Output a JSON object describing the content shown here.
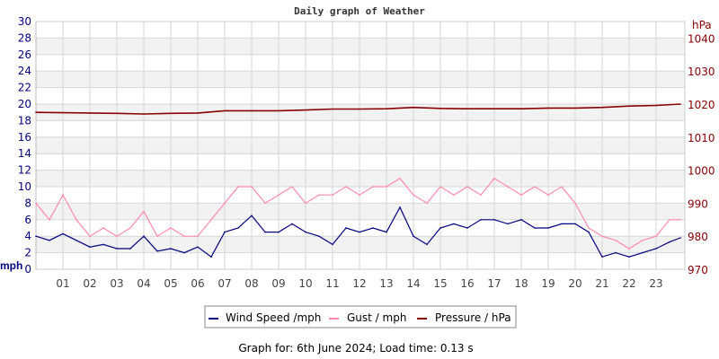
{
  "chart_data": {
    "type": "line",
    "title": "Daily graph of Weather",
    "x_ticks": [
      "01",
      "02",
      "03",
      "04",
      "05",
      "06",
      "07",
      "08",
      "09",
      "10",
      "11",
      "12",
      "13",
      "14",
      "15",
      "16",
      "17",
      "18",
      "19",
      "20",
      "21",
      "22",
      "23"
    ],
    "xlim": [
      0,
      24
    ],
    "left_axis": {
      "label": "mph",
      "ylim": [
        0,
        30
      ],
      "ticks": [
        0,
        2,
        4,
        6,
        8,
        10,
        12,
        14,
        16,
        18,
        20,
        22,
        24,
        26,
        28,
        30
      ],
      "color": "#000080"
    },
    "right_axis": {
      "label": "hPa",
      "ylim": [
        970,
        1045
      ],
      "ticks": [
        970,
        980,
        990,
        1000,
        1010,
        1020,
        1030,
        1040
      ],
      "color": "#8b0000"
    },
    "grid": true,
    "legend_position": "bottom",
    "series": [
      {
        "name": "Wind Speed /mph",
        "axis": "left",
        "color": "#000080",
        "x": [
          0,
          0.5,
          1,
          1.5,
          2,
          2.5,
          3,
          3.5,
          4,
          4.5,
          5,
          5.5,
          6,
          6.5,
          7,
          7.5,
          8,
          8.5,
          9,
          9.5,
          10,
          10.5,
          11,
          11.5,
          12,
          12.5,
          13,
          13.5,
          14,
          14.5,
          15,
          15.5,
          16,
          16.5,
          17,
          17.5,
          18,
          18.5,
          19,
          19.5,
          20,
          20.5,
          21,
          21.5,
          22,
          22.5,
          23,
          23.5,
          23.9
        ],
        "values": [
          4,
          3.5,
          4.3,
          3.5,
          2.7,
          3,
          2.5,
          2.5,
          4,
          2.2,
          2.5,
          2,
          2.7,
          1.5,
          4.5,
          5,
          6.5,
          4.5,
          4.5,
          5.5,
          4.5,
          4,
          3,
          5,
          4.5,
          5,
          4.5,
          7.5,
          4,
          3,
          5,
          5.5,
          5,
          6,
          6,
          5.5,
          6,
          5,
          5,
          5.5,
          5.5,
          4.5,
          1.5,
          2,
          1.5,
          2,
          2.5,
          3.3,
          3.8
        ]
      },
      {
        "name": "Gust / mph",
        "axis": "left",
        "color": "#ff88aa",
        "x": [
          0,
          0.5,
          1,
          1.5,
          2,
          2.5,
          3,
          3.5,
          4,
          4.5,
          5,
          5.5,
          6,
          6.5,
          7,
          7.5,
          8,
          8.5,
          9,
          9.5,
          10,
          10.5,
          11,
          11.5,
          12,
          12.5,
          13,
          13.5,
          14,
          14.5,
          15,
          15.5,
          16,
          16.5,
          17,
          17.5,
          18,
          18.5,
          19,
          19.5,
          20,
          20.5,
          21,
          21.5,
          22,
          22.5,
          23,
          23.5,
          23.9
        ],
        "values": [
          8,
          6,
          9,
          6,
          4,
          5,
          4,
          5,
          7,
          4,
          5,
          4,
          4,
          6,
          8,
          10,
          10,
          8,
          9,
          10,
          8,
          9,
          9,
          10,
          9,
          10,
          10,
          11,
          9,
          8,
          10,
          9,
          10,
          9,
          11,
          10,
          9,
          10,
          9,
          10,
          8,
          5,
          4,
          3.5,
          2.5,
          3.5,
          4,
          6,
          6
        ]
      },
      {
        "name": "Pressure / hPa",
        "axis": "right",
        "color": "#8b0000",
        "x": [
          0,
          1,
          2,
          3,
          4,
          5,
          6,
          7,
          8,
          9,
          10,
          11,
          12,
          13,
          14,
          15,
          16,
          17,
          18,
          19,
          20,
          21,
          22,
          23,
          23.9
        ],
        "values": [
          1017.5,
          1017.4,
          1017.3,
          1017.2,
          1017,
          1017.2,
          1017.3,
          1018,
          1018,
          1018,
          1018.2,
          1018.5,
          1018.5,
          1018.6,
          1019,
          1018.7,
          1018.6,
          1018.6,
          1018.6,
          1018.8,
          1018.8,
          1019,
          1019.4,
          1019.6,
          1020
        ]
      }
    ]
  },
  "footer": "Graph for: 6th June 2024; Load time: 0.13 s"
}
